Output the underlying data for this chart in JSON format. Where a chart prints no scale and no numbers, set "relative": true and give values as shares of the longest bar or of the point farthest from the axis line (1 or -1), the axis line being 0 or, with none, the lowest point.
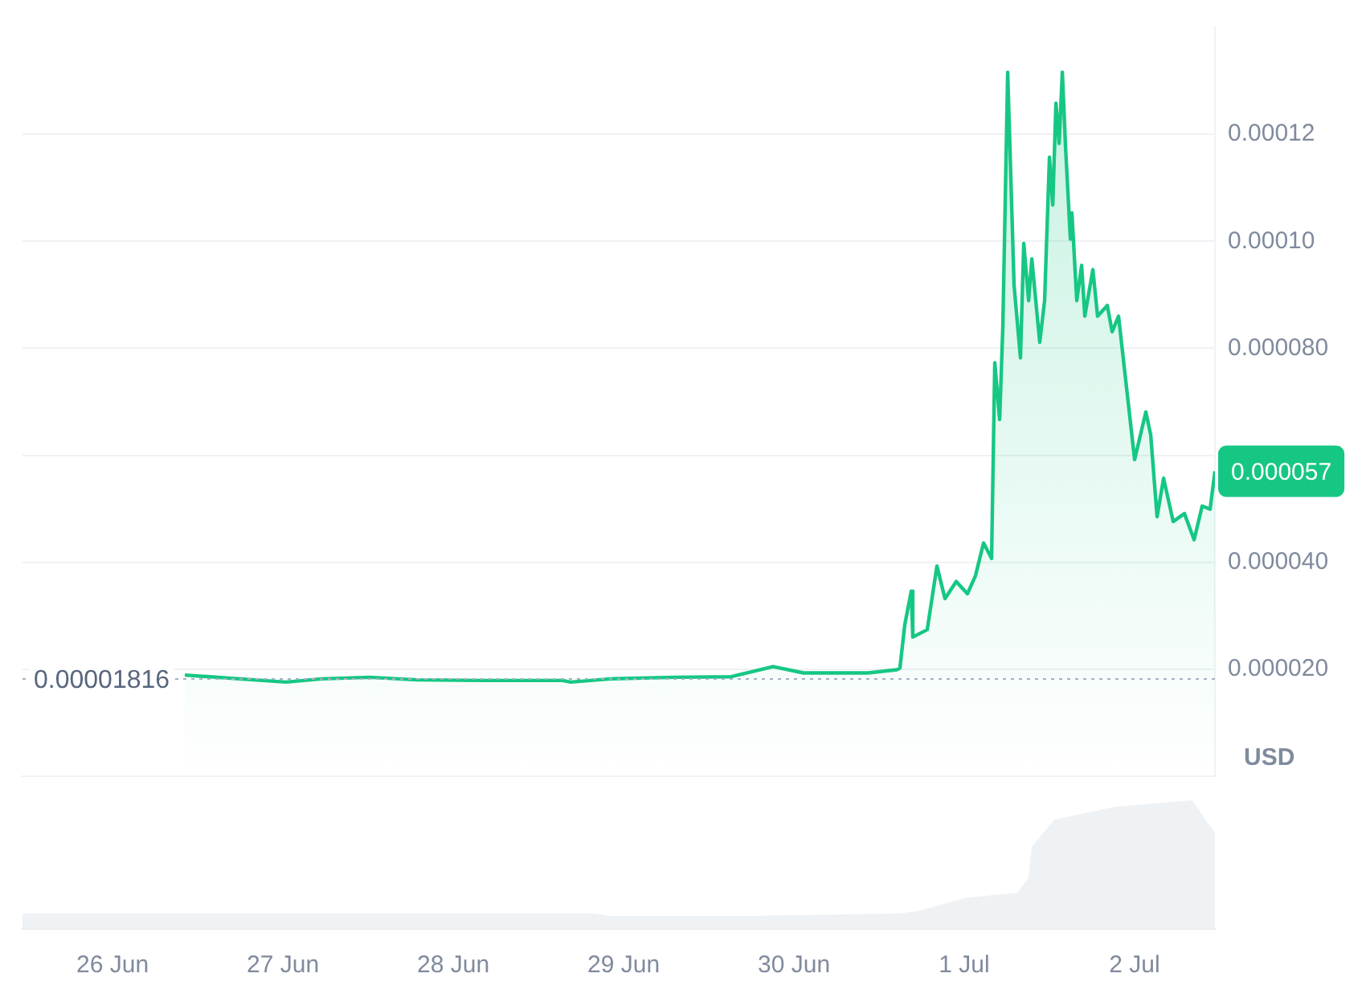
{
  "chart_data": [
    {
      "type": "area",
      "ylabel": "USD",
      "xlim": [
        "--06-25T11:19",
        "--07-02T11:19"
      ],
      "ylim": [
        0,
        0.00014
      ],
      "yticks": [
        {
          "value": 2e-05,
          "label": "0.000020"
        },
        {
          "value": 4e-05,
          "label": "0.000040"
        },
        {
          "value": 6e-05,
          "label": null
        },
        {
          "value": 8e-05,
          "label": "0.000080"
        },
        {
          "value": 0.0001,
          "label": "0.00010"
        },
        {
          "value": 0.00012,
          "label": "0.00012"
        }
      ],
      "tick_labels": "y",
      "grid": "y",
      "marker": "none",
      "line_style": "solid",
      "x": [
        "--06-26T10:11",
        "--06-27T00:27",
        "--06-27T05:26",
        "--06-27T12:14",
        "--06-27T19:01",
        "--06-28T04:05",
        "--06-28T15:24",
        "--06-28T16:32",
        "--06-28T22:11",
        "--06-29T07:15",
        "--06-29T15:10",
        "--06-29T21:04",
        "--06-30T01:22",
        "--06-30T10:25",
        "--06-30T14:29",
        "--06-30T14:56",
        "--06-30T15:37",
        "--06-30T16:32",
        "--06-30T16:45",
        "--06-30T18:47",
        "--06-30T20:09",
        "--06-30T21:17",
        "--06-30T22:52",
        "--07-01T00:27",
        "--07-01T01:35",
        "--07-01T02:43",
        "--07-01T03:51",
        "--07-01T04:18",
        "--07-01T04:59",
        "--07-01T05:26",
        "--07-01T06:07",
        "--07-01T07:01",
        "--07-01T07:55",
        "--07-01T08:23",
        "--07-01T09:04",
        "--07-01T09:31",
        "--07-01T10:38",
        "--07-01T11:19",
        "--07-01T12:00",
        "--07-01T12:28",
        "--07-01T12:55",
        "--07-01T13:22",
        "--07-01T13:49",
        "--07-01T14:16",
        "--07-01T14:57",
        "--07-01T15:10",
        "--07-01T15:51",
        "--07-01T16:32",
        "--07-01T16:59",
        "--07-01T18:07",
        "--07-01T18:47",
        "--07-01T20:09",
        "--07-01T20:50",
        "--07-01T21:44",
        "--07-02T00:00",
        "--07-02T01:35",
        "--07-02T02:16",
        "--07-02T03:10",
        "--07-02T04:05",
        "--07-02T05:26",
        "--07-02T07:01",
        "--07-02T08:23",
        "--07-02T09:31",
        "--07-02T10:38",
        "--07-02T11:19"
      ],
      "series": [
        {
          "color": "#16c784",
          "values": [
            1.89e-05,
            1.76e-05,
            1.82e-05,
            1.85e-05,
            1.8e-05,
            1.79e-05,
            1.79e-05,
            1.76e-05,
            1.82e-05,
            1.85e-05,
            1.86e-05,
            2.05e-05,
            1.93e-05,
            1.93e-05,
            1.99e-05,
            2.02e-05,
            2.83e-05,
            3.46e-05,
            2.6e-05,
            2.74e-05,
            3.93e-05,
            3.32e-05,
            3.64e-05,
            3.41e-05,
            3.75e-05,
            4.36e-05,
            4.07e-05,
            7.73e-05,
            6.67e-05,
            8.4e-05,
            0.0001316,
            9.18e-05,
            7.82e-05,
            9.96e-05,
            8.89e-05,
            9.67e-05,
            8.11e-05,
            8.89e-05,
            0.0001157,
            0.0001068,
            0.0001258,
            0.0001183,
            0.0001316,
            0.0001177,
            0.0001004,
            0.0001053,
            8.89e-05,
            9.55e-05,
            8.6e-05,
            9.47e-05,
            8.6e-05,
            8.8e-05,
            8.31e-05,
            8.6e-05,
            5.92e-05,
            6.81e-05,
            6.38e-05,
            4.85e-05,
            5.57e-05,
            4.76e-05,
            4.91e-05,
            4.42e-05,
            5.05e-05,
            4.99e-05,
            5.7e-05
          ]
        }
      ],
      "ref_lines": [
        {
          "axis": "y",
          "value": 1.816e-05,
          "label": "0.00001816",
          "color": "#a6b0c3",
          "line_style": "dotted"
        }
      ],
      "annotations": [
        "0.000057"
      ]
    },
    {
      "type": "area",
      "relative": true,
      "tick_labels": "x",
      "xlim": [
        "--06-25T11:19",
        "--07-02T11:19"
      ],
      "xticks": [
        {
          "value": "--06-26",
          "label": "26 Jun"
        },
        {
          "value": "--06-27",
          "label": "27 Jun"
        },
        {
          "value": "--06-28",
          "label": "28 Jun"
        },
        {
          "value": "--06-29",
          "label": "29 Jun"
        },
        {
          "value": "--06-30",
          "label": "30 Jun"
        },
        {
          "value": "--07-01",
          "label": "1 Jul"
        },
        {
          "value": "--07-02",
          "label": "2 Jul"
        }
      ],
      "x": [
        "--06-25T11:19",
        "--06-26T10:11",
        "--06-28T19:55",
        "--06-28T22:11",
        "--06-29T16:18",
        "--06-30T14:56",
        "--06-30T17:40",
        "--07-01T00:00",
        "--07-01T07:28",
        "--07-01T09:04",
        "--07-01T09:31",
        "--07-01T12:41",
        "--07-01T21:17",
        "--07-02T08:09",
        "--07-02T09:58",
        "--07-02T11:19"
      ],
      "series": [
        {
          "color": "#eff2f5",
          "values": [
            0.12,
            0.12,
            0.12,
            0.1,
            0.1,
            0.12,
            0.14,
            0.24,
            0.28,
            0.4,
            0.64,
            0.85,
            0.95,
            1,
            0.85,
            0.75
          ]
        }
      ]
    }
  ]
}
